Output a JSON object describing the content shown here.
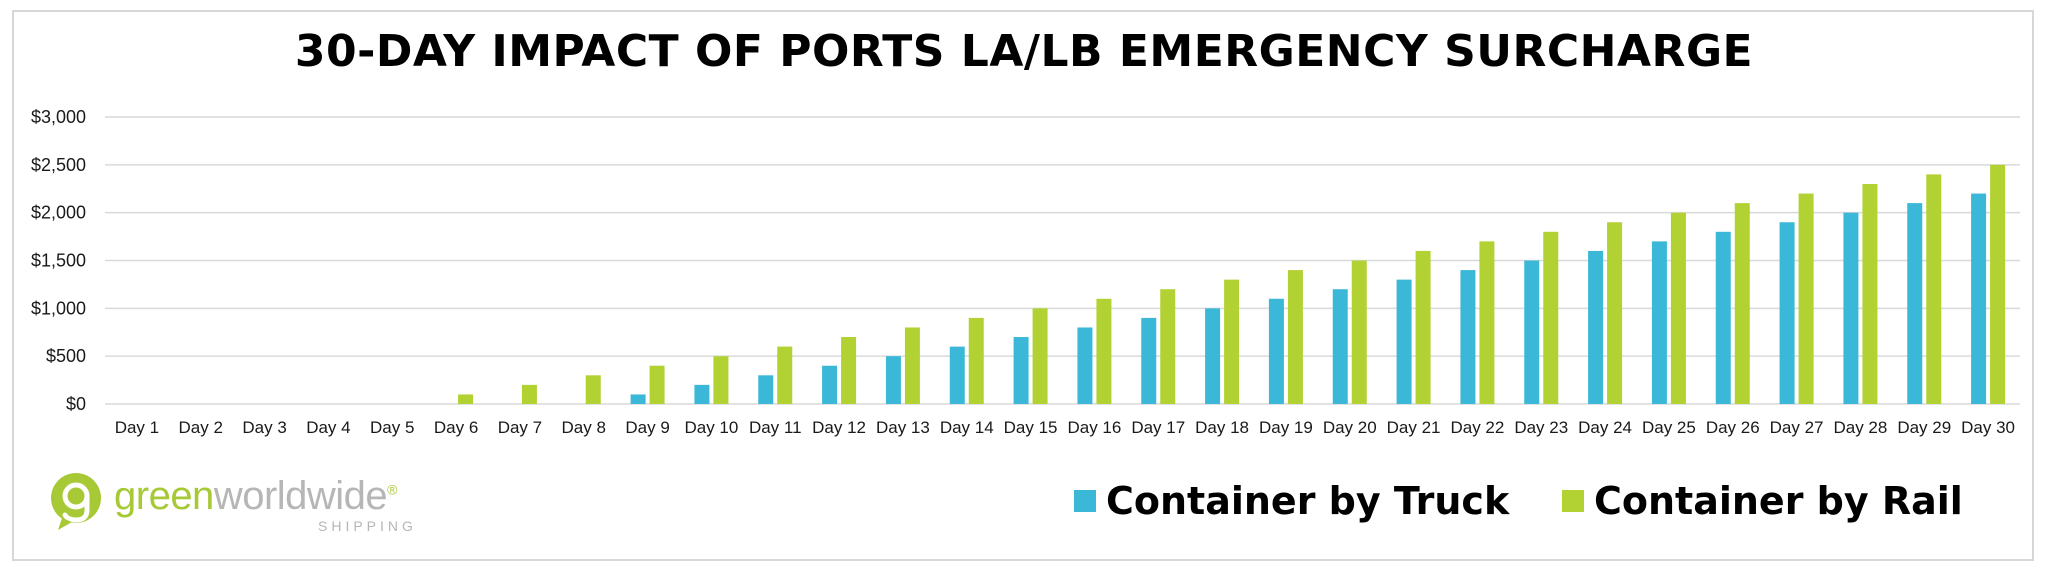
{
  "chart_data": {
    "type": "bar",
    "title": "30-DAY IMPACT OF PORTS LA/LB EMERGENCY SURCHARGE",
    "xlabel": "",
    "ylabel": "",
    "ylim": [
      0,
      3000
    ],
    "y_ticks": [
      "$0",
      "$500",
      "$1,000",
      "$1,500",
      "$2,000",
      "$2,500",
      "$3,000"
    ],
    "y_tick_values": [
      0,
      500,
      1000,
      1500,
      2000,
      2500,
      3000
    ],
    "grid": true,
    "legend_position": "bottom-right",
    "categories": [
      "Day 1",
      "Day 2",
      "Day 3",
      "Day 4",
      "Day 5",
      "Day 6",
      "Day 7",
      "Day 8",
      "Day 9",
      "Day 10",
      "Day 11",
      "Day 12",
      "Day 13",
      "Day 14",
      "Day 15",
      "Day 16",
      "Day 17",
      "Day 18",
      "Day 19",
      "Day 20",
      "Day 21",
      "Day 22",
      "Day 23",
      "Day 24",
      "Day 25",
      "Day 26",
      "Day 27",
      "Day 28",
      "Day 29",
      "Day 30"
    ],
    "series": [
      {
        "name": "Container by Truck",
        "color": "#3bb8d8",
        "values": [
          0,
          0,
          0,
          0,
          0,
          0,
          0,
          0,
          100,
          200,
          300,
          400,
          500,
          600,
          700,
          800,
          900,
          1000,
          1100,
          1200,
          1300,
          1400,
          1500,
          1600,
          1700,
          1800,
          1900,
          2000,
          2100,
          2200
        ]
      },
      {
        "name": "Container by Rail",
        "color": "#b2d234",
        "values": [
          0,
          0,
          0,
          0,
          0,
          100,
          200,
          300,
          400,
          500,
          600,
          700,
          800,
          900,
          1000,
          1100,
          1200,
          1300,
          1400,
          1500,
          1600,
          1700,
          1800,
          1900,
          2000,
          2100,
          2200,
          2300,
          2400,
          2500
        ]
      }
    ]
  },
  "logo": {
    "part1": "green",
    "part2": "worldwide",
    "sub": "SHIPPING",
    "registered": "®"
  },
  "colors": {
    "gridline": "#d9d9d9",
    "axis_text": "#1a1a1a",
    "logo_green": "#a6c935",
    "logo_grey": "#b6b6b6"
  }
}
